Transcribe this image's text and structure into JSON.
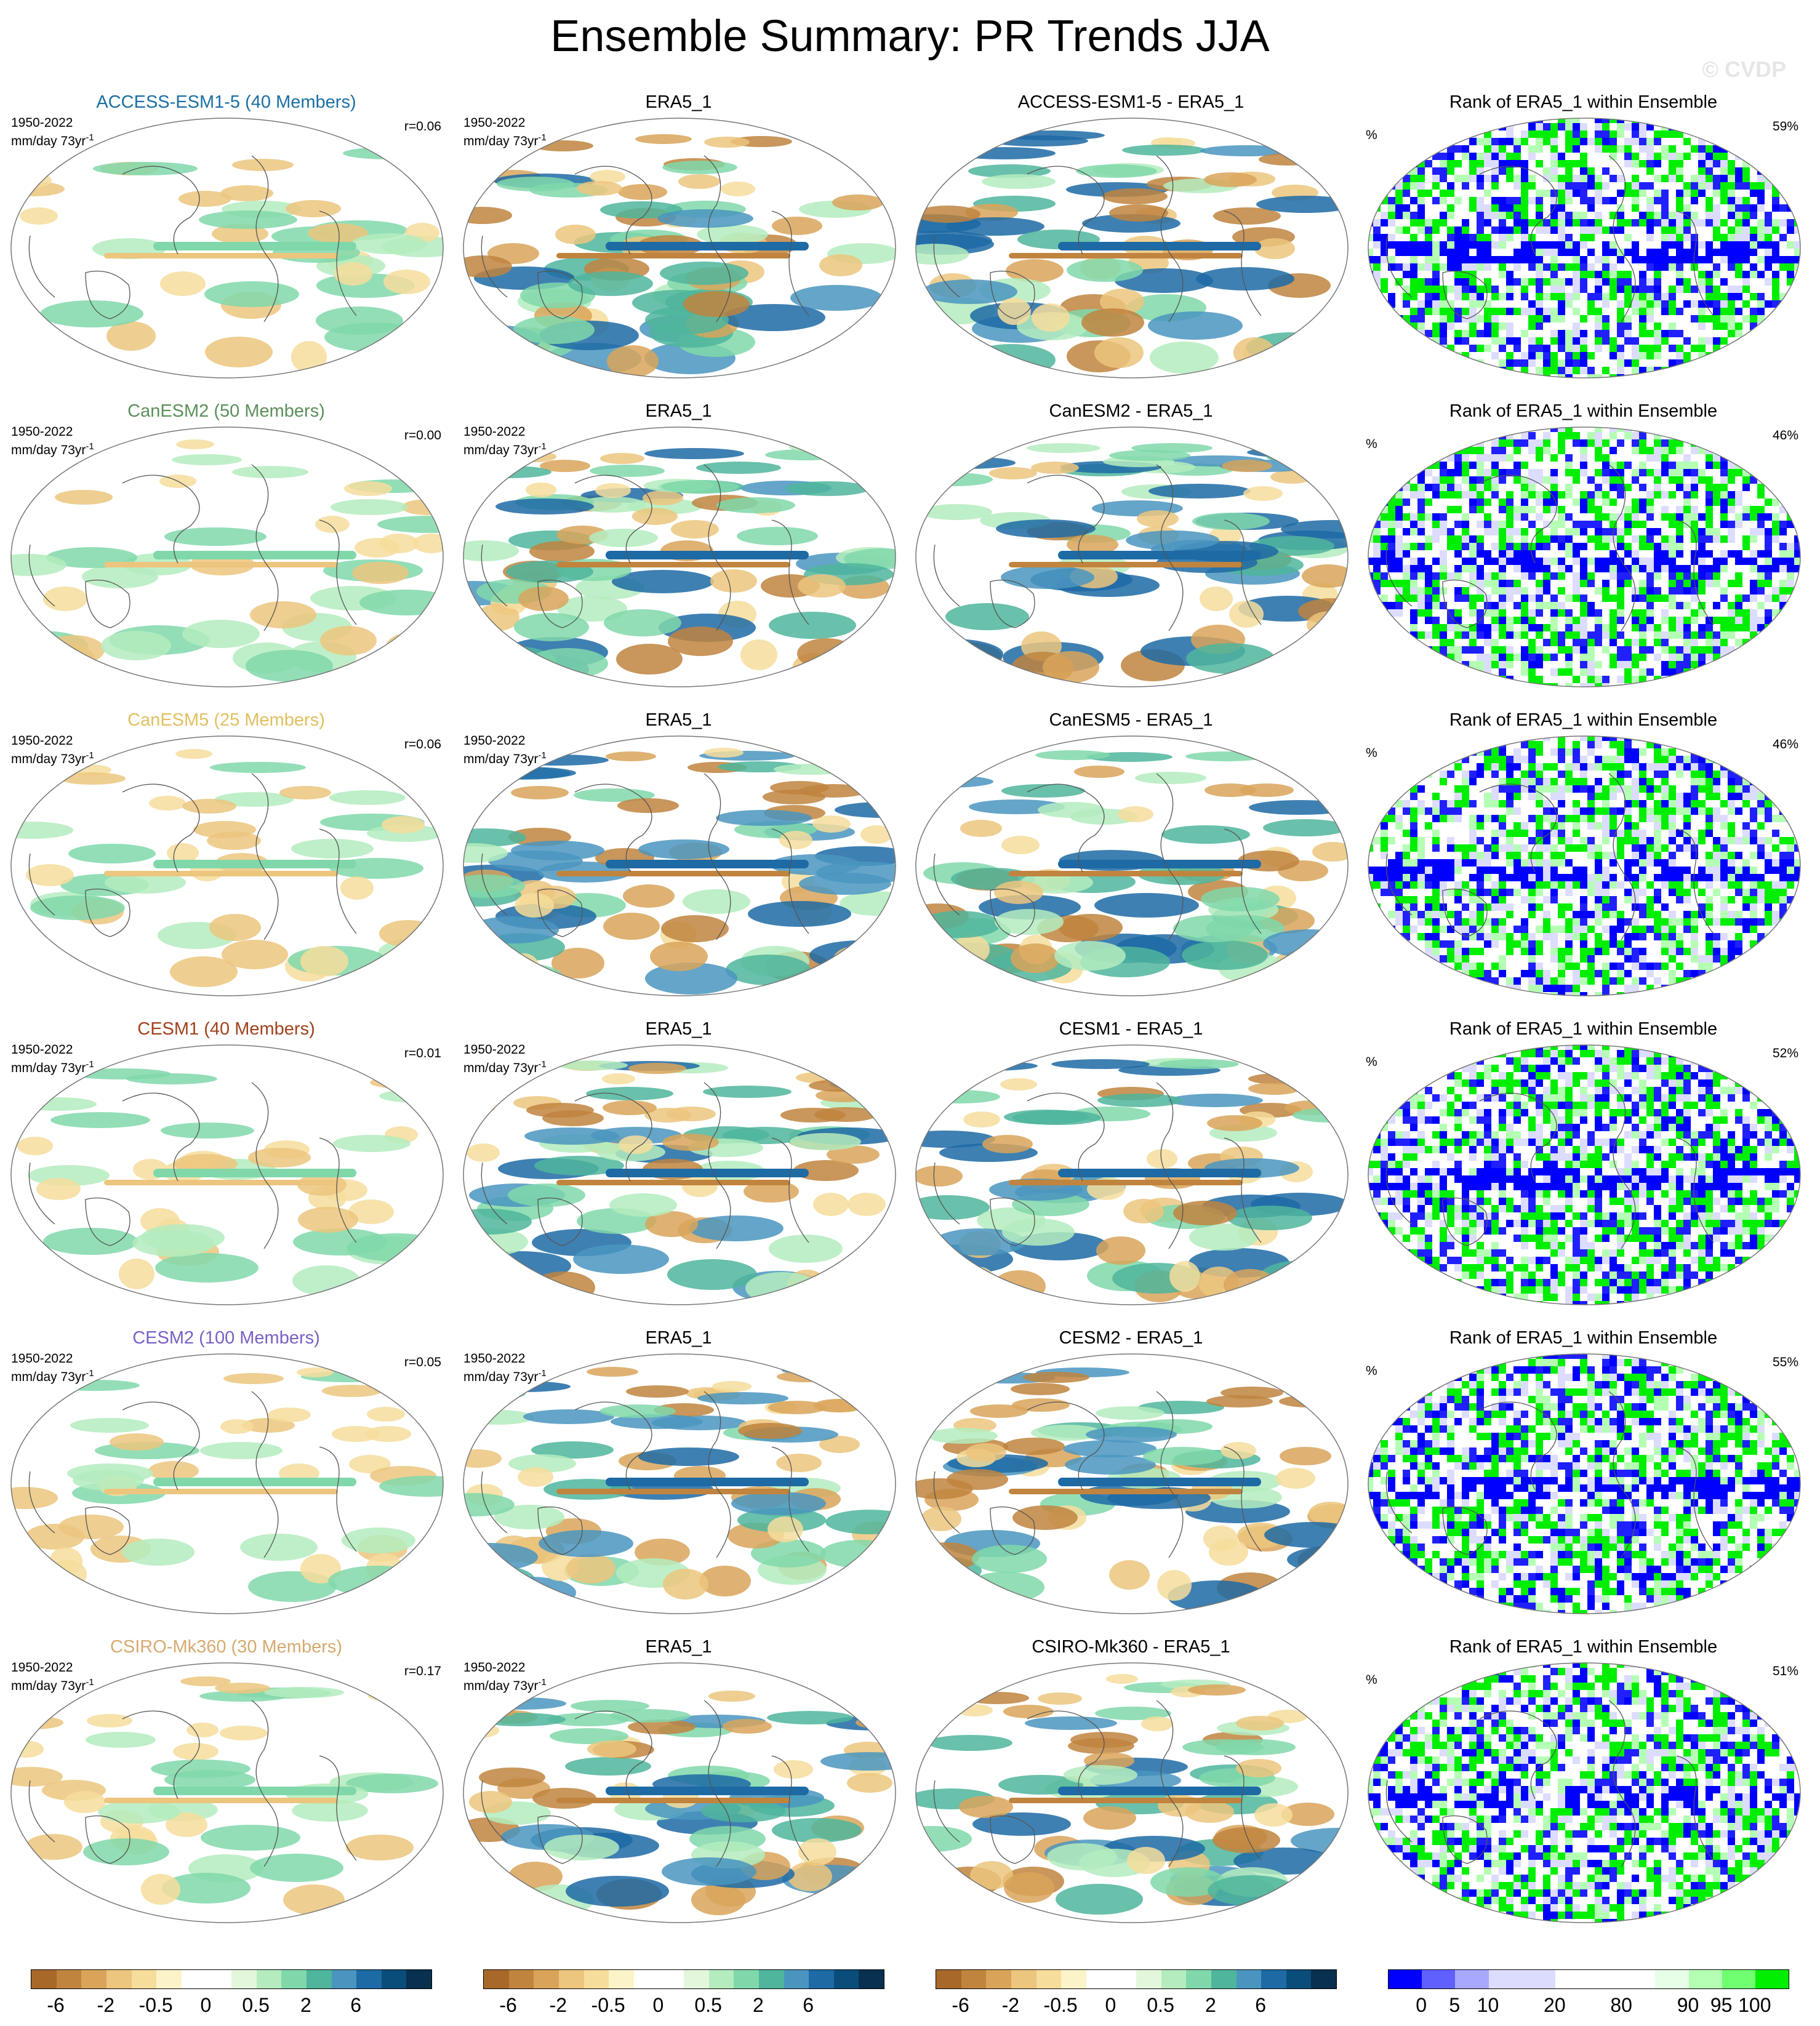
{
  "figure": {
    "title": "Ensemble Summary: PR Trends JJA",
    "watermark": "© CVDP"
  },
  "rows": [
    {
      "model_title": "ACCESS-ESM1-5 (40 Members)",
      "model_color": "#1a6fa3",
      "period": "1950-2022",
      "units": "mm/day 73yr",
      "units_sup": "-1",
      "r": "r=0.06",
      "obs_title": "ERA5_1",
      "diff_title": "ACCESS-ESM1-5 - ERA5_1",
      "rank_title": "Rank of ERA5_1 within Ensemble",
      "rank_pct_label": "%",
      "rank_pct": "59%"
    },
    {
      "model_title": "CanESM2 (50 Members)",
      "model_color": "#5b8f5b",
      "period": "1950-2022",
      "units": "mm/day 73yr",
      "units_sup": "-1",
      "r": "r=0.00",
      "obs_title": "ERA5_1",
      "diff_title": "CanESM2 - ERA5_1",
      "rank_title": "Rank of ERA5_1 within Ensemble",
      "rank_pct_label": "%",
      "rank_pct": "46%"
    },
    {
      "model_title": "CanESM5 (25 Members)",
      "model_color": "#e0c060",
      "period": "1950-2022",
      "units": "mm/day 73yr",
      "units_sup": "-1",
      "r": "r=0.06",
      "obs_title": "ERA5_1",
      "diff_title": "CanESM5 - ERA5_1",
      "rank_title": "Rank of ERA5_1 within Ensemble",
      "rank_pct_label": "%",
      "rank_pct": "46%"
    },
    {
      "model_title": "CESM1 (40 Members)",
      "model_color": "#a0421c",
      "period": "1950-2022",
      "units": "mm/day 73yr",
      "units_sup": "-1",
      "r": "r=0.01",
      "obs_title": "ERA5_1",
      "diff_title": "CESM1 - ERA5_1",
      "rank_title": "Rank of ERA5_1 within Ensemble",
      "rank_pct_label": "%",
      "rank_pct": "52%"
    },
    {
      "model_title": "CESM2 (100 Members)",
      "model_color": "#7a5fc4",
      "period": "1950-2022",
      "units": "mm/day 73yr",
      "units_sup": "-1",
      "r": "r=0.05",
      "obs_title": "ERA5_1",
      "diff_title": "CESM2 - ERA5_1",
      "rank_title": "Rank of ERA5_1 within Ensemble",
      "rank_pct_label": "%",
      "rank_pct": "55%"
    },
    {
      "model_title": "CSIRO-Mk360 (30 Members)",
      "model_color": "#d6aa70",
      "period": "1950-2022",
      "units": "mm/day 73yr",
      "units_sup": "-1",
      "r": "r=0.17",
      "obs_title": "ERA5_1",
      "diff_title": "CSIRO-Mk360 - ERA5_1",
      "rank_title": "Rank of ERA5_1 within Ensemble",
      "rank_pct_label": "%",
      "rank_pct": "51%"
    }
  ],
  "colorbars": {
    "trend": {
      "colors": [
        "#a8682a",
        "#c0843e",
        "#d9a45a",
        "#ecc57e",
        "#f6dd9c",
        "#fdf3c8",
        "#ffffff",
        "#ffffff",
        "#e3f7dc",
        "#b4ecbe",
        "#80d8aa",
        "#4fb59c",
        "#4a95bf",
        "#1d6aa5",
        "#0b4d7a",
        "#08304f"
      ],
      "labels": [
        "-6",
        "-2",
        "-0.5",
        "0",
        "0.5",
        "2",
        "6"
      ]
    },
    "rank": {
      "colors": [
        "#0000ff",
        "#6060ff",
        "#a8a8ff",
        "#dcdcff",
        "#dcdcff",
        "#ffffff",
        "#ffffff",
        "#ffffff",
        "#e6ffe6",
        "#b4ffb4",
        "#70ff70",
        "#00ee00"
      ],
      "labels": [
        "0",
        "5",
        "10",
        "20",
        "80",
        "90",
        "95",
        "100"
      ]
    }
  }
}
